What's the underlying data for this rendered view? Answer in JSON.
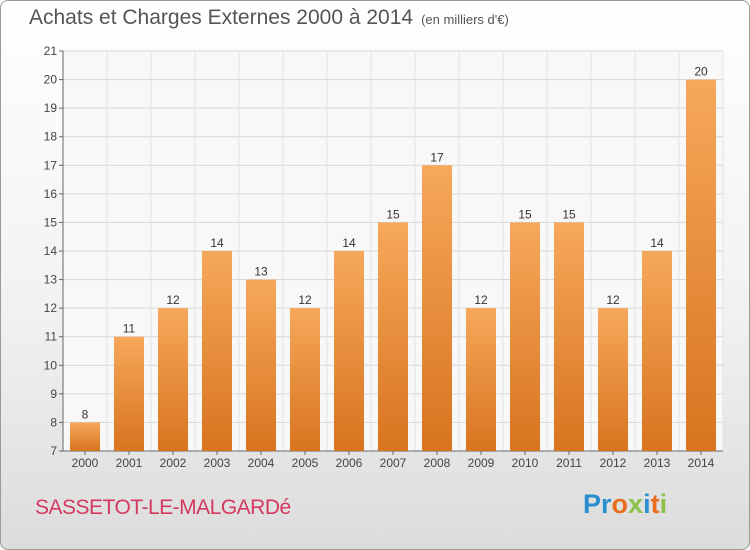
{
  "header": {
    "title": "Achats et Charges Externes 2000 à 2014",
    "unit": "(en milliers d'€)"
  },
  "footer": {
    "commune": "SASSETOT-LE-MALGARDé",
    "logo_text": "Proxiti",
    "logo_colors": [
      "#2a8fd0",
      "#2a8fd0",
      "#e86d1f",
      "#8bc34a",
      "#2a8fd0",
      "#e86d1f",
      "#8bc34a"
    ]
  },
  "colors": {
    "bar_light": "#f6a85a",
    "bar_dark": "#d8741f",
    "title": "#555555",
    "commune": "#d4395f"
  },
  "chart_data": {
    "type": "bar",
    "title": "Achats et Charges Externes 2000 à 2014",
    "subtitle": "(en milliers d'€)",
    "categories": [
      "2000",
      "2001",
      "2002",
      "2003",
      "2004",
      "2005",
      "2006",
      "2007",
      "2008",
      "2009",
      "2010",
      "2011",
      "2012",
      "2013",
      "2014"
    ],
    "values": [
      8,
      11,
      12,
      14,
      13,
      12,
      14,
      15,
      17,
      12,
      15,
      15,
      12,
      14,
      20
    ],
    "ylim": [
      7,
      21
    ],
    "yticks": [
      7,
      8,
      9,
      10,
      11,
      12,
      13,
      14,
      15,
      16,
      17,
      18,
      19,
      20,
      21
    ],
    "grid": true,
    "data_labels": true
  }
}
